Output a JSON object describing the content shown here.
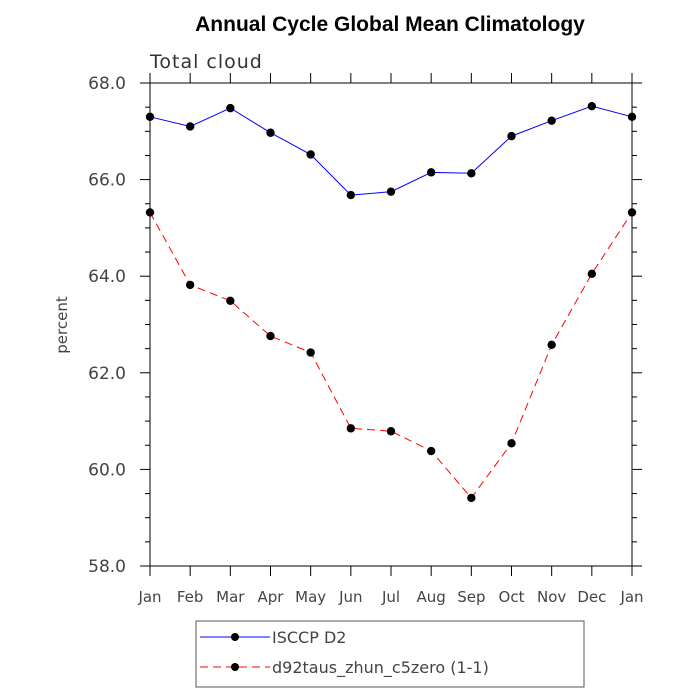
{
  "chart_data": {
    "type": "line",
    "title": "Annual Cycle Global Mean Climatology",
    "subtitle": "Total cloud",
    "xlabel": "",
    "ylabel": "percent",
    "categories": [
      "Jan",
      "Feb",
      "Mar",
      "Apr",
      "May",
      "Jun",
      "Jul",
      "Aug",
      "Sep",
      "Oct",
      "Nov",
      "Dec",
      "Jan"
    ],
    "ylim": [
      58.0,
      68.0
    ],
    "yticks": [
      "58.0",
      "60.0",
      "62.0",
      "64.0",
      "66.0",
      "68.0"
    ],
    "grid": false,
    "legend_position": "bottom",
    "series": [
      {
        "name": "ISCCP D2",
        "color": "#0000ff",
        "line_style": "solid",
        "marker": "filled-circle",
        "values": [
          67.3,
          67.1,
          67.48,
          66.97,
          66.52,
          65.68,
          65.75,
          66.15,
          66.13,
          66.9,
          67.22,
          67.52,
          67.3
        ]
      },
      {
        "name": "d92taus_zhun_c5zero (1-1)",
        "color": "#ff0000",
        "line_style": "dashed",
        "marker": "filled-circle",
        "values": [
          65.32,
          63.82,
          63.49,
          62.76,
          62.42,
          60.85,
          60.79,
          60.38,
          59.41,
          60.54,
          62.58,
          64.05,
          65.32
        ]
      }
    ]
  }
}
